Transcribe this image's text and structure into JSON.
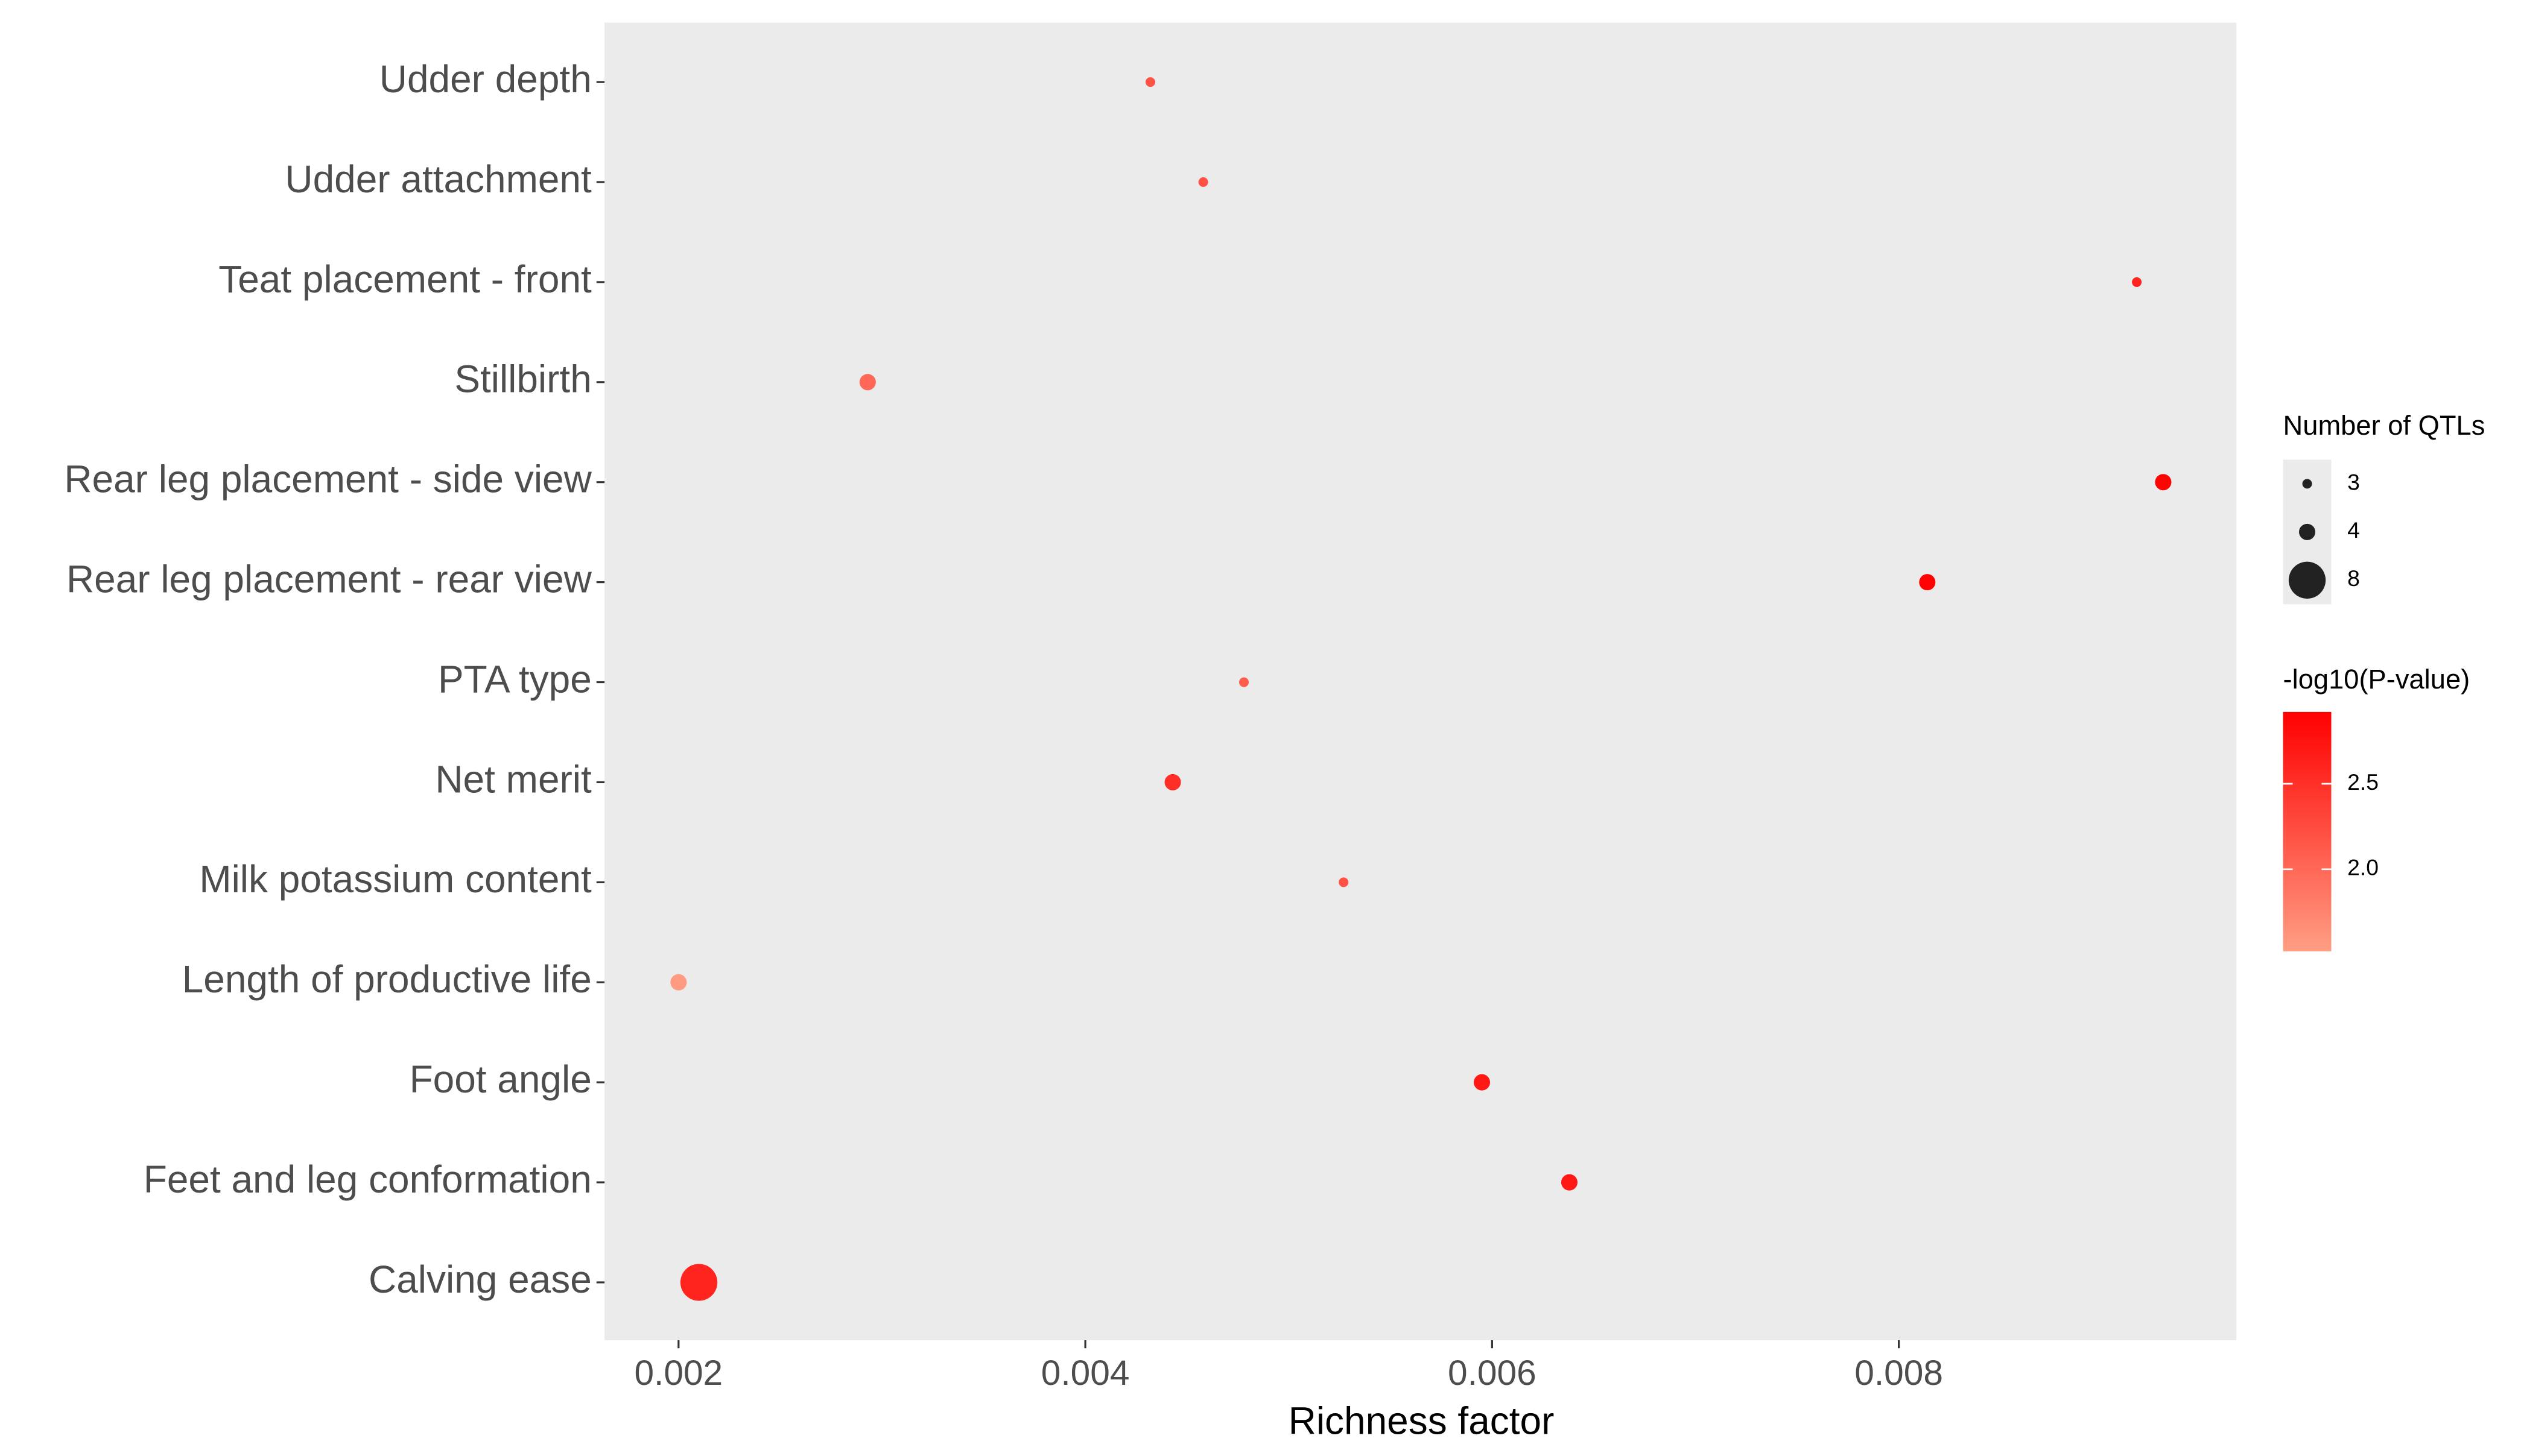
{
  "chart_data": {
    "type": "bubble",
    "x_label": "Richness factor",
    "categories": [
      "Udder depth",
      "Udder attachment",
      "Teat placement - front",
      "Stillbirth",
      "Rear leg placement - side view",
      "Rear leg placement - rear view",
      "PTA type",
      "Net merit",
      "Milk potassium content",
      "Length of productive life",
      "Foot angle",
      "Feet and leg conformation",
      "Calving ease"
    ],
    "x": [
      0.00432,
      0.00458,
      0.00917,
      0.00293,
      0.0093,
      0.00814,
      0.00478,
      0.00443,
      0.00527,
      0.002,
      0.00595,
      0.00638,
      0.0021
    ],
    "size": [
      3,
      3,
      3,
      4,
      4,
      4,
      3,
      4,
      3,
      4,
      4,
      4,
      8
    ],
    "color_values": [
      2.2,
      2.2,
      2.6,
      2.0,
      2.9,
      2.9,
      2.1,
      2.5,
      2.2,
      1.55,
      2.7,
      2.7,
      2.6
    ],
    "xlim": [
      0.001636,
      0.00966
    ],
    "xticks": [
      0.002,
      0.004,
      0.006,
      0.008
    ],
    "size_legend_title": "Number of QTLs",
    "size_legend": [
      3,
      4,
      8
    ],
    "color_legend_title": "-log10(P-value)",
    "colorlim": [
      1.52,
      2.92
    ],
    "colorticks": [
      {
        "value": 2.0,
        "label": "2.0"
      },
      2.5
    ],
    "color_low": "#ff9e84",
    "color_high": "#ff0000",
    "panel_color": "#ebebeb"
  }
}
